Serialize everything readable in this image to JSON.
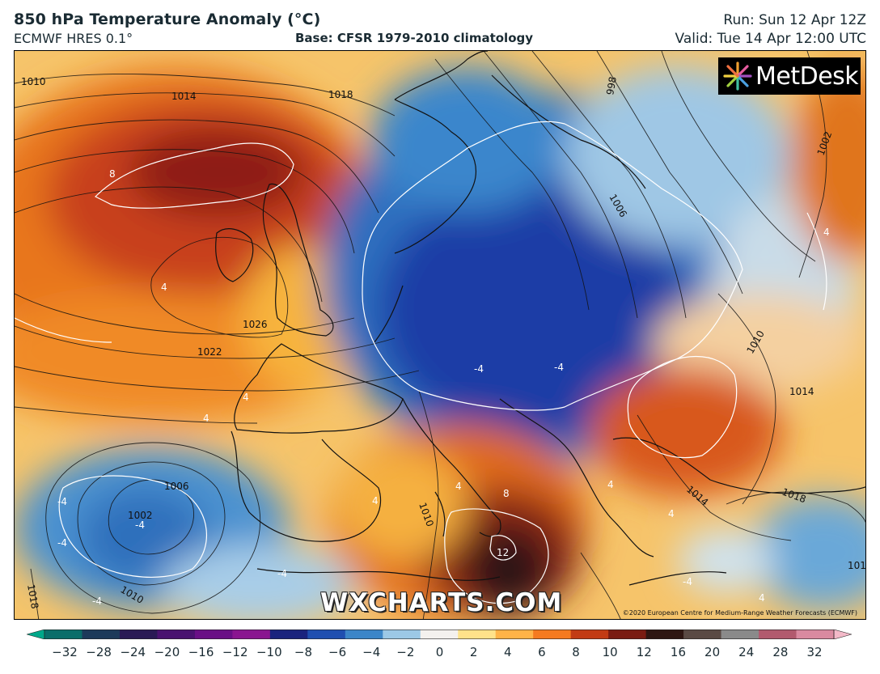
{
  "header": {
    "title": "850 hPa Temperature Anomaly (°C)",
    "model": "ECMWF HRES 0.1°",
    "base": "Base: CFSR 1979-2010 climatology",
    "run": "Run: Sun 12 Apr 12Z",
    "valid": "Valid: Tue 14 Apr 12:00 UTC"
  },
  "logo": {
    "text": "MetDesk",
    "icon": "metdesk-logo-icon"
  },
  "watermark": "WXCHARTS.COM",
  "copyright": "©2020 European Centre for Medium-Range Weather Forecasts (ECMWF)",
  "isobar_labels": [
    "1010",
    "1014",
    "1018",
    "998",
    "1002",
    "1006",
    "1026",
    "1022",
    "1010",
    "1014",
    "1006",
    "1002",
    "1010",
    "1010",
    "1014",
    "1018",
    "1018",
    "1010"
  ],
  "anomaly_labels": [
    "8",
    "4",
    "4",
    "4",
    "4",
    "-4",
    "-4",
    "-4",
    "-4",
    "-4",
    "4",
    "8",
    "12",
    "-4",
    "4",
    "-4",
    "-4",
    "4",
    "4",
    "4"
  ],
  "colorbar": {
    "ticks": [
      "−32",
      "−28",
      "−24",
      "−20",
      "−16",
      "−12",
      "−10",
      "−8",
      "−6",
      "−4",
      "−2",
      "0",
      "2",
      "4",
      "6",
      "8",
      "10",
      "12",
      "16",
      "20",
      "24",
      "28",
      "32"
    ],
    "colors": [
      "#00a88a",
      "#0a6e6a",
      "#1d3a5a",
      "#2a1a55",
      "#4a1270",
      "#6a0f86",
      "#8a1590",
      "#1a237e",
      "#1f4fb0",
      "#3c86c8",
      "#9cc8e6",
      "#f4f1ee",
      "#ffe28a",
      "#ffb347",
      "#f57a1f",
      "#c23b14",
      "#7a1c12",
      "#2e1612",
      "#5a4a44",
      "#8a8a8a",
      "#b25a6e",
      "#d98aa0",
      "#f3b9c8"
    ]
  }
}
